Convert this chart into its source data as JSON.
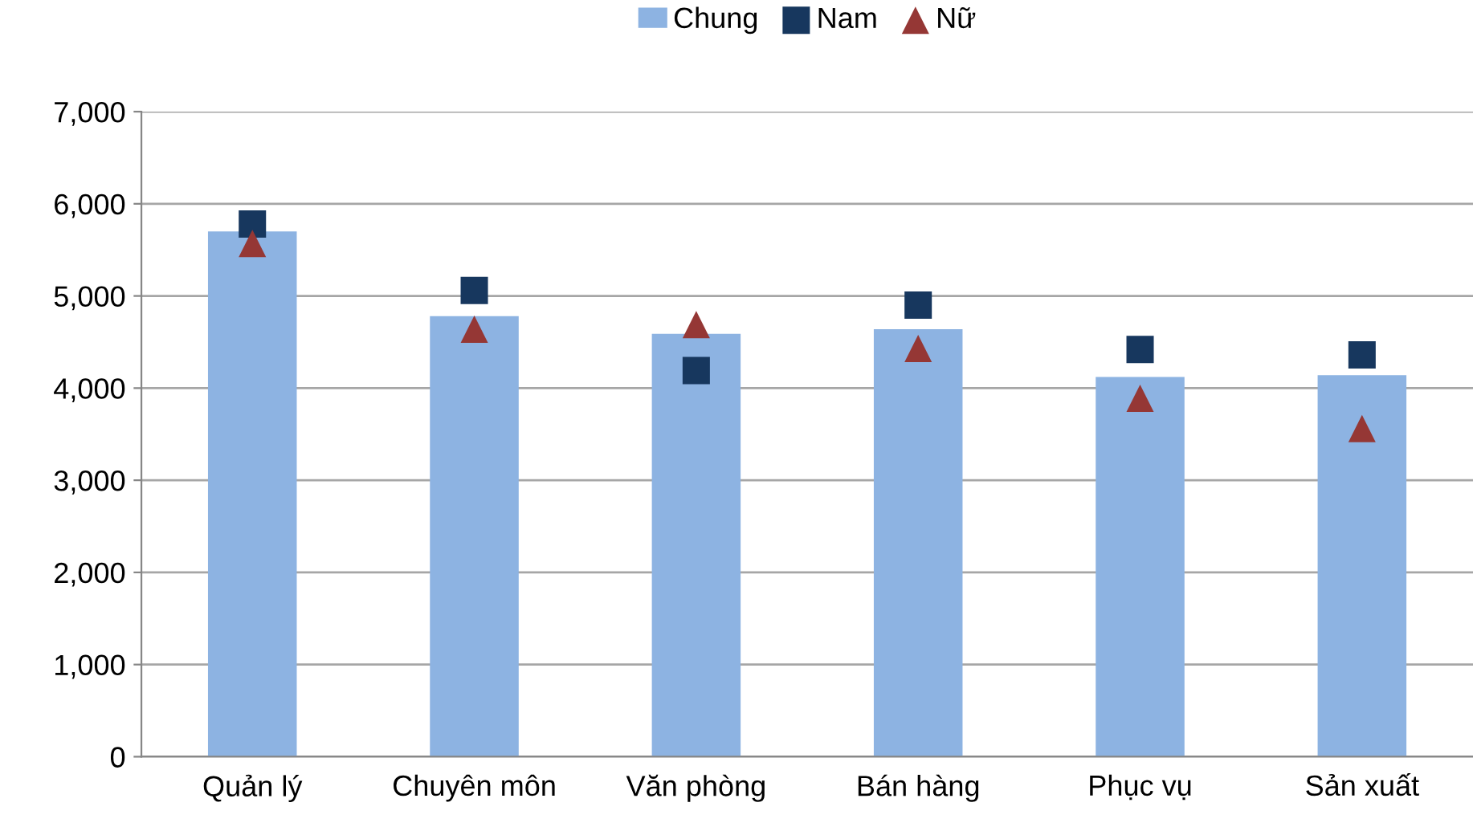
{
  "chart_data": {
    "type": "bar",
    "categories": [
      "Quản lý",
      "Chuyên môn",
      "Văn phòng",
      "Bán hàng",
      "Phục vụ",
      "Sản xuất"
    ],
    "series": [
      {
        "name": "Chung",
        "color": "#8db3e2",
        "values": [
          5700,
          4780,
          4590,
          4640,
          4120,
          4140
        ]
      },
      {
        "name": "Nam",
        "type": "scatter",
        "marker": "square",
        "color": "#17375e",
        "values": [
          5780,
          5060,
          4190,
          4900,
          4420,
          4360
        ]
      },
      {
        "name": "Nữ",
        "type": "scatter",
        "marker": "triangle",
        "color": "#953735",
        "values": [
          5570,
          4640,
          4690,
          4430,
          3890,
          3560
        ]
      }
    ],
    "ylim": [
      0,
      7000
    ],
    "yticks": [
      {
        "value": 0,
        "label": "0"
      },
      {
        "value": 1000,
        "label": "1,000"
      },
      {
        "value": 2000,
        "label": "2,000"
      },
      {
        "value": 3000,
        "label": "3,000"
      },
      {
        "value": 4000,
        "label": "4,000"
      },
      {
        "value": 5000,
        "label": "5,000"
      },
      {
        "value": 6000,
        "label": "6,000"
      },
      {
        "value": 7000,
        "label": "7,000"
      }
    ],
    "grid": "y",
    "legend": "top"
  }
}
